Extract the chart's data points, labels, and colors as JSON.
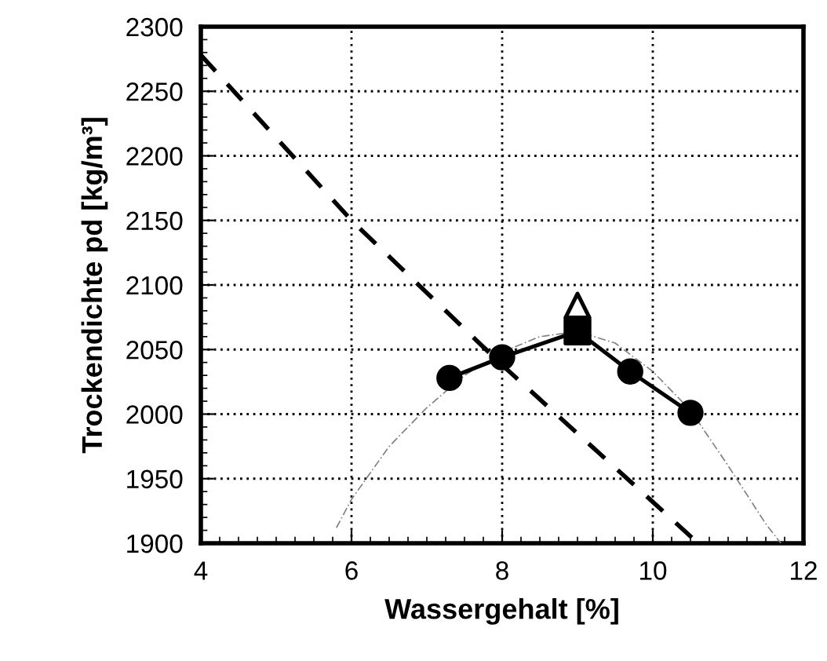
{
  "chart_data": {
    "type": "line",
    "xlabel": "Wassergehalt [%]",
    "ylabel": "Trockendichte pd [kg/m³]",
    "xlim": [
      4,
      12
    ],
    "xticks": [
      4,
      6,
      8,
      10,
      12
    ],
    "ylim": [
      1900,
      2300
    ],
    "yticks": [
      1900,
      1950,
      2000,
      2050,
      2100,
      2150,
      2200,
      2250,
      2300
    ],
    "grid": true,
    "legend": false,
    "series": [
      {
        "color": "#000000",
        "line_style": "dashed",
        "marker": "none",
        "x": [
          4,
          6,
          8,
          10,
          10.6
        ],
        "values": [
          2278,
          2150,
          2038,
          1932,
          1900
        ]
      },
      {
        "color": "#808080",
        "line_style": "dotted",
        "marker": "none",
        "x": [
          5.8,
          6,
          6.5,
          7,
          7.5,
          8,
          8.5,
          9,
          9.5,
          10,
          10.5,
          11,
          11.5,
          11.7
        ],
        "values": [
          1912,
          1934,
          1975,
          2005,
          2030,
          2048,
          2060,
          2064,
          2055,
          2033,
          2003,
          1960,
          1915,
          1900
        ]
      },
      {
        "color": "#000000",
        "line_style": "solid",
        "marker": "circle",
        "x": [
          7.3,
          8,
          9,
          9.7,
          10.5
        ],
        "values": [
          2028,
          2044,
          2064,
          2033,
          2001
        ]
      },
      {
        "type": "scatter",
        "color": "#000000",
        "marker": "square",
        "x": [
          9
        ],
        "values": [
          2064
        ]
      },
      {
        "type": "scatter",
        "color": "#ffffff",
        "marker": "triangle",
        "x": [
          9
        ],
        "values": [
          2084
        ]
      }
    ]
  }
}
